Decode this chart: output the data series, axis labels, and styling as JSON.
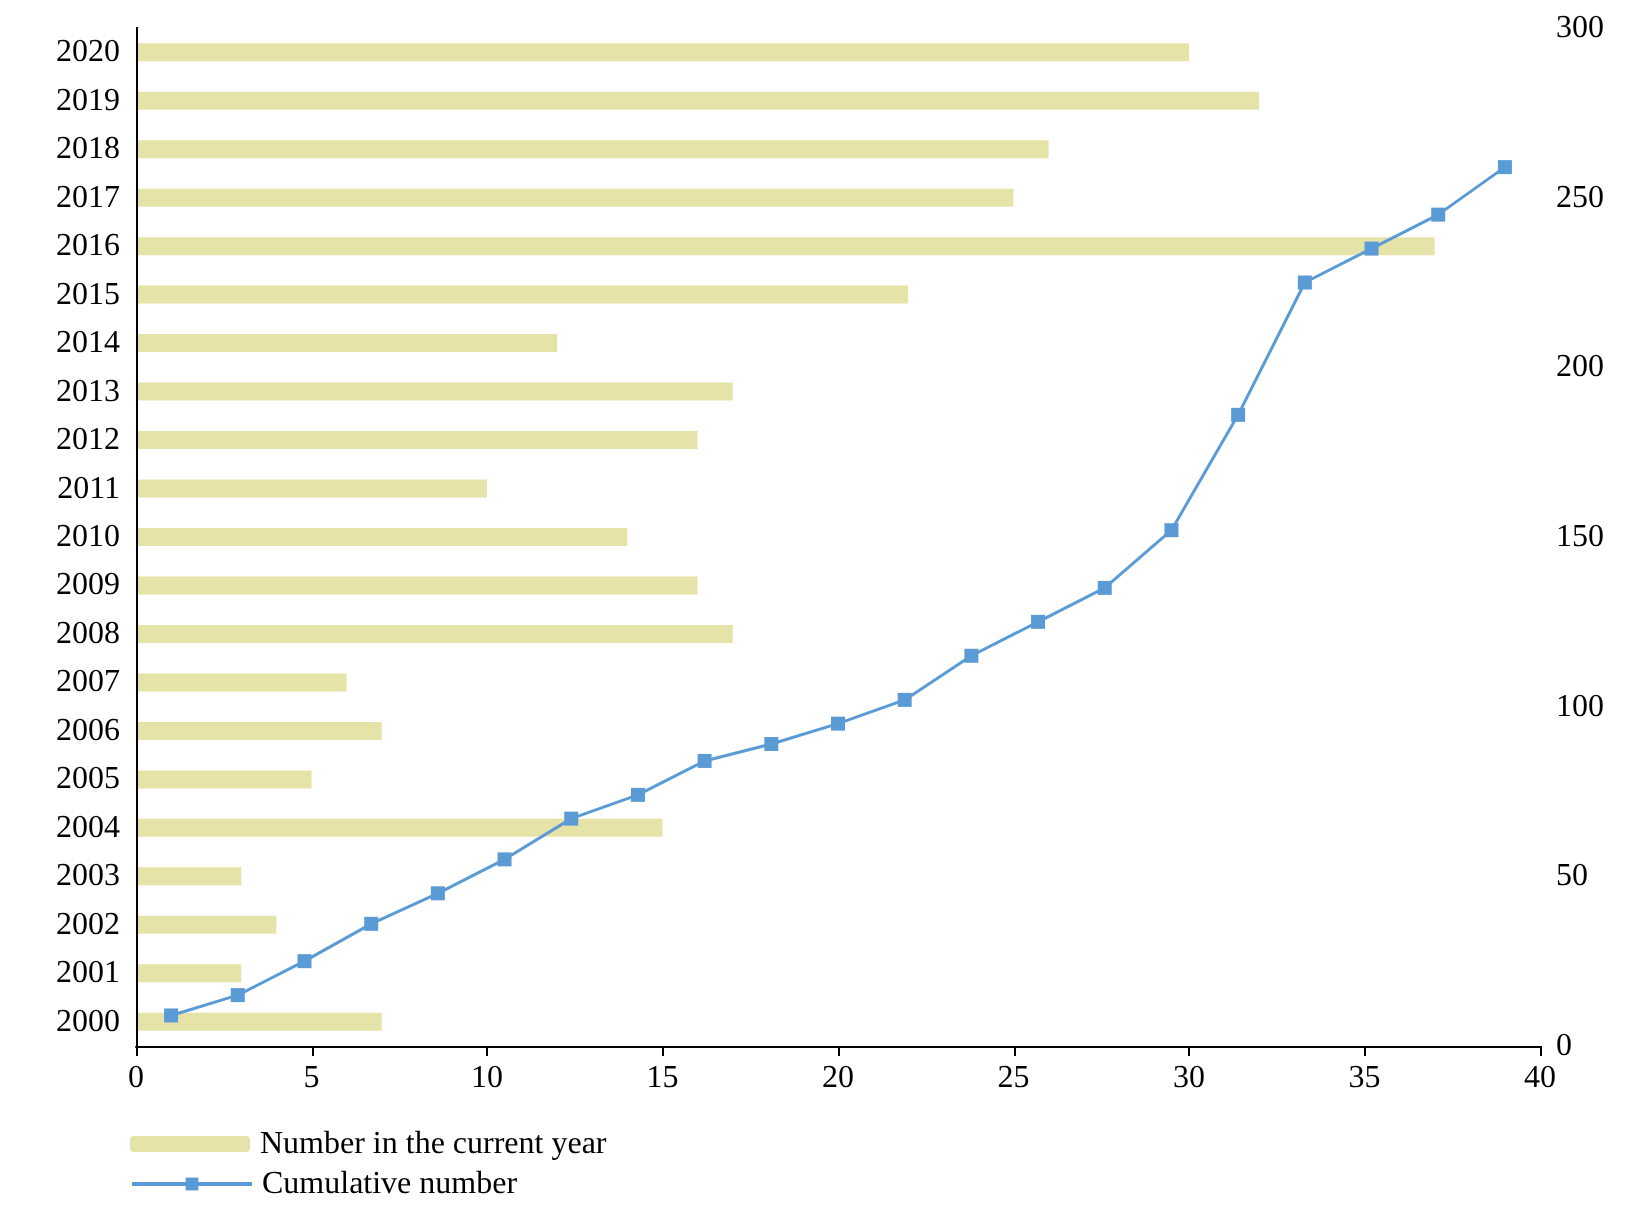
{
  "chart_data": [
    {
      "type": "bar",
      "orientation": "horizontal",
      "categories": [
        "2020",
        "2019",
        "2018",
        "2017",
        "2016",
        "2015",
        "2014",
        "2013",
        "2012",
        "2011",
        "2010",
        "2009",
        "2008",
        "2007",
        "2006",
        "2005",
        "2004",
        "2003",
        "2002",
        "2001",
        "2000"
      ],
      "series": [
        {
          "name": "Number in the current year",
          "color": "#e6e3a8",
          "values": [
            30,
            32,
            26,
            25,
            37,
            22,
            12,
            17,
            16,
            10,
            14,
            16,
            17,
            6,
            7,
            5,
            15,
            3,
            4,
            3,
            7
          ]
        }
      ],
      "xlim": [
        0,
        40
      ],
      "xticks": [
        0,
        5,
        10,
        15,
        20,
        25,
        30,
        35,
        40
      ],
      "legend": "bottom left"
    },
    {
      "type": "line",
      "x": [
        1,
        2.9,
        4.8,
        6.7,
        8.6,
        10.5,
        12.4,
        14.3,
        16.2,
        18.1,
        20,
        21.9,
        23.8,
        25.7,
        27.6,
        29.5,
        31.4,
        33.3,
        35.2,
        37.1,
        39
      ],
      "series": [
        {
          "name": "Cumulative number",
          "color": "#5b9bd5",
          "values": [
            9,
            15,
            25,
            36,
            45,
            55,
            67,
            74,
            84,
            89,
            95,
            102,
            115,
            125,
            135,
            152,
            186,
            225,
            235,
            245,
            259
          ]
        }
      ],
      "xlim": [
        0,
        40
      ],
      "ylim": [
        0,
        300
      ],
      "yticks": [
        0,
        50,
        100,
        150,
        200,
        250,
        300
      ],
      "tick_labels": "y",
      "marker": "square",
      "legend": "bottom left"
    }
  ]
}
